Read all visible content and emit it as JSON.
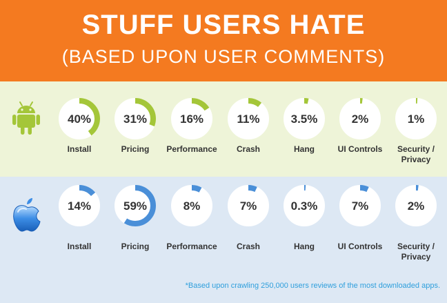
{
  "header": {
    "title": "STUFF USERS HATE",
    "subtitle": "(BASED UPON USER COMMENTS)"
  },
  "colors": {
    "header_bg": "#f47a20",
    "android_bg": "#eef4d8",
    "ios_bg": "#dde8f4",
    "android_accent": "#a4c639",
    "ios_accent": "#4a8fd8",
    "ring_track": "#ffffff",
    "footnote": "#2f9fdc"
  },
  "android": {
    "logo": "android-logo"
  },
  "ios": {
    "logo": "apple-logo"
  },
  "chart_data": [
    {
      "type": "donut",
      "platform": "Android",
      "categories": [
        "Install",
        "Pricing",
        "Performance",
        "Crash",
        "Hang",
        "UI Controls",
        "Security / Privacy"
      ],
      "values": [
        40,
        31,
        16,
        11,
        3.5,
        2,
        1
      ],
      "labels": [
        "40%",
        "31%",
        "16%",
        "11%",
        "3.5%",
        "2%",
        "1%"
      ]
    },
    {
      "type": "donut",
      "platform": "iOS",
      "categories": [
        "Install",
        "Pricing",
        "Performance",
        "Crash",
        "Hang",
        "UI Controls",
        "Security / Privacy"
      ],
      "values": [
        14,
        59,
        8,
        7,
        0.3,
        7,
        2
      ],
      "labels": [
        "14%",
        "59%",
        "8%",
        "7%",
        "0.3%",
        "7%",
        "2%"
      ]
    }
  ],
  "footnote": "*Based upon crawling 250,000 users reviews of the most downloaded apps."
}
